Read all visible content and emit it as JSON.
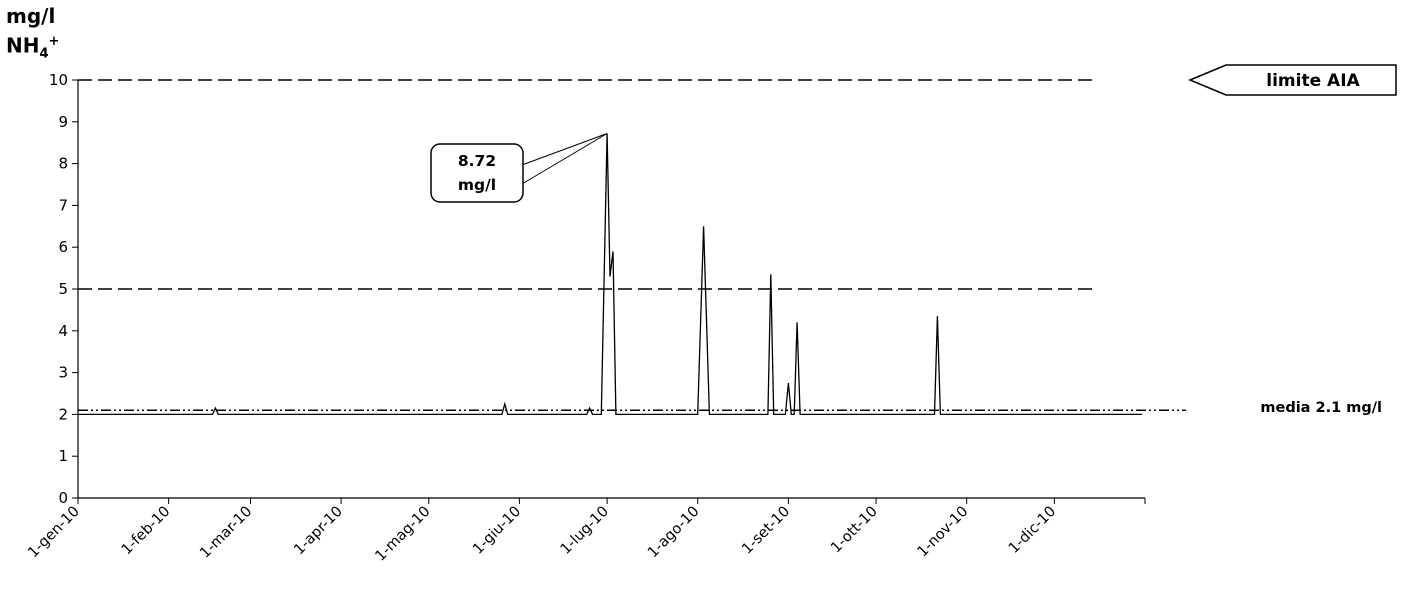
{
  "chart_data": {
    "type": "line",
    "ylabel_unit": "mg/l",
    "ylabel_base": "NH",
    "ylabel_sub": "4",
    "ylabel_sup": "+",
    "ylim": [
      0,
      10
    ],
    "yticks": [
      "0",
      "1",
      "2",
      "3",
      "4",
      "5",
      "6",
      "7",
      "8",
      "9",
      "10"
    ],
    "xlim": [
      "2010-01-01",
      "2011-01-01"
    ],
    "xticks": [
      {
        "date": "2010-01-01",
        "label": "1-gen-10"
      },
      {
        "date": "2010-02-01",
        "label": "1-feb-10"
      },
      {
        "date": "2010-03-01",
        "label": "1-mar-10"
      },
      {
        "date": "2010-04-01",
        "label": "1-apr-10"
      },
      {
        "date": "2010-05-01",
        "label": "1-mag-10"
      },
      {
        "date": "2010-06-01",
        "label": "1-giu-10"
      },
      {
        "date": "2010-07-01",
        "label": "1-lug-10"
      },
      {
        "date": "2010-08-01",
        "label": "1-ago-10"
      },
      {
        "date": "2010-09-01",
        "label": "1-set-10"
      },
      {
        "date": "2010-10-01",
        "label": "1-ott-10"
      },
      {
        "date": "2010-11-01",
        "label": "1-nov-10"
      },
      {
        "date": "2010-12-01",
        "label": "1-dic-10"
      }
    ],
    "grid": false,
    "series": [
      {
        "values": [
          [
            "2010-01-01",
            2.0
          ],
          [
            "2010-02-16",
            2.0
          ],
          [
            "2010-02-17",
            2.15
          ],
          [
            "2010-02-18",
            2.0
          ],
          [
            "2010-05-26",
            2.0
          ],
          [
            "2010-05-27",
            2.25
          ],
          [
            "2010-05-28",
            2.0
          ],
          [
            "2010-06-24",
            2.0
          ],
          [
            "2010-06-25",
            2.15
          ],
          [
            "2010-06-26",
            2.0
          ],
          [
            "2010-06-29",
            2.0
          ],
          [
            "2010-07-01",
            8.72
          ],
          [
            "2010-07-02",
            5.3
          ],
          [
            "2010-07-03",
            5.9
          ],
          [
            "2010-07-04",
            2.0
          ],
          [
            "2010-08-01",
            2.0
          ],
          [
            "2010-08-03",
            6.5
          ],
          [
            "2010-08-05",
            2.0
          ],
          [
            "2010-08-25",
            2.0
          ],
          [
            "2010-08-26",
            5.35
          ],
          [
            "2010-08-27",
            2.0
          ],
          [
            "2010-08-31",
            2.0
          ],
          [
            "2010-09-01",
            2.75
          ],
          [
            "2010-09-02",
            2.0
          ],
          [
            "2010-09-03",
            2.0
          ],
          [
            "2010-09-04",
            4.2
          ],
          [
            "2010-09-05",
            2.0
          ],
          [
            "2010-10-21",
            2.0
          ],
          [
            "2010-10-22",
            4.35
          ],
          [
            "2010-10-23",
            2.0
          ],
          [
            "2010-12-31",
            2.0
          ]
        ]
      }
    ],
    "reference_lines": [
      {
        "value": 10,
        "style": "dashed",
        "from": "2010-01-01",
        "to": "2010-12-15",
        "label": "limite AIA"
      },
      {
        "value": 5,
        "style": "dashed",
        "from": "2010-01-01",
        "to": "2010-12-15"
      },
      {
        "value": 2.1,
        "style": "dash-dot-dot",
        "from": "2010-01-01",
        "to": "2011-01-15",
        "label": "media 2.1 mg/l"
      }
    ],
    "callout": {
      "date": "2010-07-01",
      "value": 8.72,
      "line1": "8.72",
      "line2": "mg/l"
    }
  }
}
